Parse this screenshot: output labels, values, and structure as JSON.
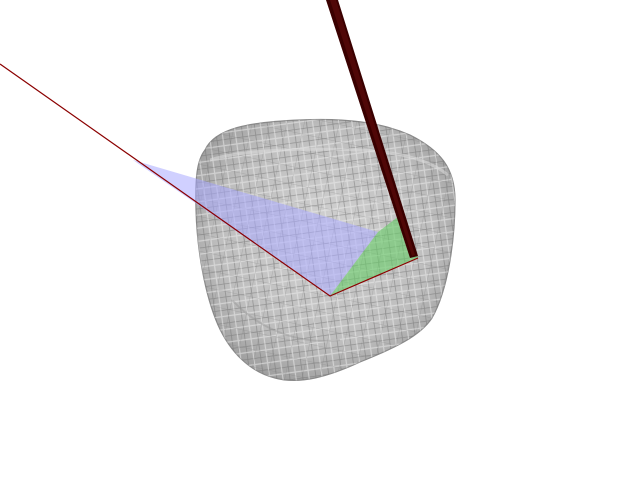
{
  "scene": {
    "background": "#ffffff",
    "mesh_fill": "#b9b9b9",
    "mesh_line_dark": "#6e6e6e",
    "mesh_line_light": "#e8e8e8",
    "mesh_outline": "#8a8a8a",
    "plane_blue": "#aaaaff",
    "plane_green": "#66cc66",
    "beam_color": "#3a0000",
    "line_color": "#8b0000"
  }
}
